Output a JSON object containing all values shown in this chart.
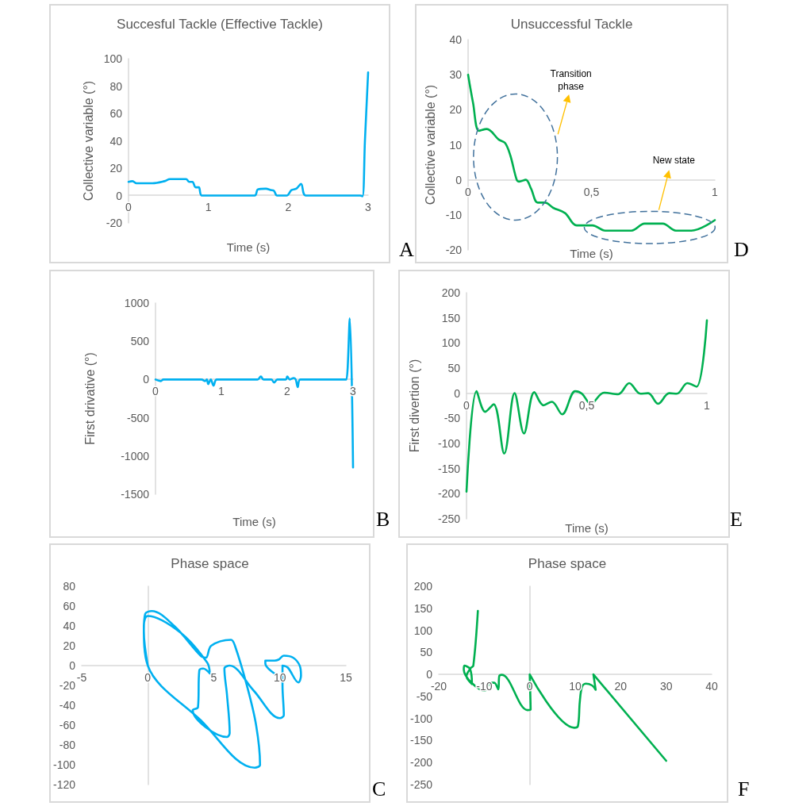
{
  "chart_data": [
    {
      "type": "line",
      "title": "Succesful Tackle (Effective Tackle)",
      "xlabel": "Time (s)",
      "ylabel": "Collective variable (°)",
      "marker": "none",
      "annotations": [
        "A"
      ],
      "xlim": [
        0,
        3
      ],
      "xticks": [
        0,
        1,
        2,
        3
      ],
      "ylim": [
        -20,
        100
      ],
      "yticks": [
        -20,
        0,
        20,
        40,
        60,
        80,
        100
      ],
      "series": [
        {
          "color": "#00b0f0",
          "x": [
            0,
            0.05,
            0.1,
            0.3,
            0.45,
            0.52,
            0.72,
            0.76,
            0.8,
            0.84,
            0.88,
            0.92,
            1.58,
            1.62,
            1.72,
            1.78,
            1.82,
            1.86,
            1.98,
            2.04,
            2.1,
            2.16,
            2.22,
            2.9,
            2.93,
            2.96,
            3
          ],
          "values": [
            10,
            10.5,
            9,
            9,
            10.5,
            12,
            12,
            10,
            10,
            6,
            6,
            0,
            0,
            4.5,
            5,
            4,
            3.5,
            0,
            0,
            4,
            5,
            8.5,
            0,
            0,
            -0.5,
            40,
            90
          ]
        }
      ]
    },
    {
      "type": "line",
      "title": "Unsuccessful Tackle",
      "xlabel": "Time (s)",
      "ylabel": "Collective variable (°)",
      "marker": "none",
      "annotations": [
        "Transition phase",
        "New state",
        "D"
      ],
      "xlim": [
        0,
        1
      ],
      "xticks": [
        0,
        {
          "value": 0.5,
          "label": "0,5"
        },
        1
      ],
      "ylim": [
        -20,
        40
      ],
      "yticks": [
        -20,
        -10,
        0,
        10,
        20,
        30,
        40
      ],
      "series": [
        {
          "color": "#00b050",
          "x": [
            0,
            0.02,
            0.044,
            0.076,
            0.124,
            0.15,
            0.171,
            0.197,
            0.207,
            0.234,
            0.255,
            0.282,
            0.312,
            0.345,
            0.393,
            0.44,
            0.504,
            0.556,
            0.662,
            0.715,
            0.789,
            0.842,
            0.905,
            1
          ],
          "values": [
            30,
            22,
            14,
            14.5,
            11.5,
            10.5,
            7,
            0,
            -0.5,
            0,
            -2.5,
            -6.5,
            -6.5,
            -8,
            -9.5,
            -13,
            -13,
            -14.5,
            -14.5,
            -12.5,
            -12.5,
            -14.5,
            -14.5,
            -11.5
          ]
        }
      ]
    },
    {
      "type": "line",
      "xlabel": "Time (s)",
      "ylabel": "First drivative (°)",
      "marker": "none",
      "annotations": [
        "B"
      ],
      "xlim": [
        0,
        3
      ],
      "xticks": [
        0,
        1,
        2,
        3
      ],
      "ylim": [
        -1500,
        1000
      ],
      "yticks": [
        -1500,
        -1000,
        -500,
        0,
        500,
        1000
      ],
      "series": [
        {
          "color": "#00b0f0",
          "x": [
            0,
            0.08,
            0.12,
            0.45,
            0.5,
            0.7,
            0.75,
            0.78,
            0.8,
            0.84,
            0.88,
            0.93,
            1.55,
            1.6,
            1.64,
            1.76,
            1.8,
            1.85,
            1.98,
            2.0,
            2.04,
            2.1,
            2.13,
            2.16,
            2.2,
            2.88,
            2.9,
            2.95,
            3
          ],
          "values": [
            0,
            -20,
            0,
            0,
            0,
            0,
            -20,
            0,
            -60,
            0,
            -80,
            0,
            0,
            40,
            0,
            0,
            -40,
            0,
            0,
            40,
            0,
            20,
            0,
            -100,
            0,
            0,
            0,
            800,
            -1150
          ]
        }
      ]
    },
    {
      "type": "line",
      "xlabel": "Time (s)",
      "ylabel": "First divertion (°)",
      "marker": "none",
      "annotations": [
        "E"
      ],
      "xlim": [
        0,
        1
      ],
      "xticks": [
        0,
        {
          "value": 0.5,
          "label": "0,5"
        },
        1
      ],
      "ylim": [
        -250,
        200
      ],
      "yticks": [
        -250,
        -200,
        -150,
        -100,
        -50,
        0,
        50,
        100,
        150,
        200
      ],
      "series": [
        {
          "color": "#00b050",
          "x": [
            0,
            0.042,
            0.078,
            0.113,
            0.157,
            0.2,
            0.239,
            0.282,
            0.32,
            0.355,
            0.398,
            0.452,
            0.48,
            0.517,
            0.572,
            0.631,
            0.677,
            0.723,
            0.756,
            0.797,
            0.843,
            0.875,
            0.919,
            0.957,
            1
          ],
          "values": [
            -196,
            4,
            -37,
            -22,
            -120,
            0,
            -80,
            2,
            -24,
            -17,
            -42,
            4,
            -1,
            -21,
            1,
            -2,
            20,
            -1,
            0,
            -21,
            0,
            -1,
            20,
            13,
            145
          ]
        }
      ]
    },
    {
      "type": "line",
      "title": "Phase space",
      "marker": "none",
      "annotations": [
        "C"
      ],
      "xlim": [
        -5,
        15
      ],
      "xticks": [
        -5,
        0,
        5,
        10,
        15
      ],
      "ylim": [
        -120,
        80
      ],
      "yticks": [
        -120,
        -100,
        -80,
        -60,
        -40,
        -20,
        0,
        20,
        40,
        60,
        80
      ],
      "series": [
        {
          "color": "#00b0f0",
          "x": [
            0,
            -0.3,
            -0.2,
            0.3,
            2,
            4,
            4.4,
            4.8,
            6.3,
            6.6,
            7.5,
            8.2,
            8.5,
            8.1,
            4,
            0,
            -0.3,
            0,
            2.5,
            4.5,
            4.7,
            4.2,
            3.9,
            3.8,
            3.4,
            6,
            6.2,
            6,
            5.8,
            6.2,
            8,
            10,
            10.3,
            10.2,
            10.2,
            10.6,
            11.4,
            11.6,
            11.5,
            11,
            10.3,
            9.9,
            9.6,
            8.9,
            8.9,
            9.8
          ],
          "values": [
            0,
            35,
            52,
            55,
            40,
            10,
            8,
            20,
            26,
            20,
            -20,
            -60,
            -100,
            -103,
            -55,
            0,
            40,
            50,
            33,
            3,
            -8,
            -3,
            -5,
            -42,
            -45,
            -72,
            -68,
            -30,
            -3,
            0,
            -25,
            -53,
            -50,
            -20,
            0,
            -2,
            -17,
            -10,
            0,
            8,
            10,
            6,
            5,
            5,
            2,
            -10
          ]
        }
      ]
    },
    {
      "type": "line",
      "title": "Phase space",
      "marker": "none",
      "annotations": [
        "F"
      ],
      "xlim": [
        -20,
        40
      ],
      "xticks": [
        -20,
        -10,
        0,
        10,
        20,
        30,
        40
      ],
      "ylim": [
        -250,
        200
      ],
      "yticks": [
        -250,
        -200,
        -150,
        -100,
        -50,
        0,
        50,
        100,
        150,
        200
      ],
      "series": [
        {
          "color": "#00b050",
          "x": [
            30,
            14,
            14.5,
            13.7,
            12.3,
            11.5,
            11,
            10.6,
            9.8,
            0,
            0.2,
            -0.5,
            -6.1,
            -6.7,
            -6.9,
            -7.8,
            -8.7,
            -9.8,
            -14.5,
            -14.4,
            -13.1,
            -12.7,
            -13.9,
            -13,
            -12.4,
            -11.4
          ],
          "values": [
            -196,
            0,
            -35,
            -25,
            -21,
            -28,
            -63,
            -117,
            -121,
            0,
            -80,
            -81,
            -1,
            -4,
            -34,
            -19,
            -19,
            -37,
            11,
            20,
            12,
            -22,
            -4,
            14,
            20,
            144
          ]
        }
      ]
    }
  ]
}
